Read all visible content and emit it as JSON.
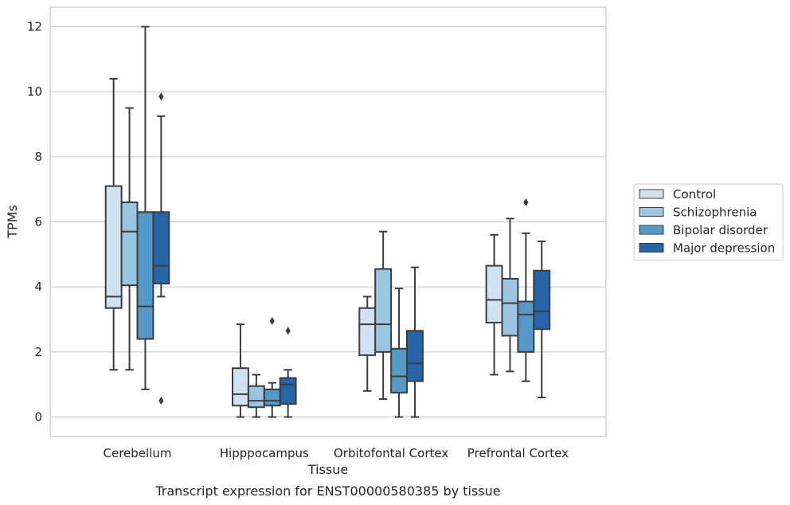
{
  "chart_data": {
    "type": "box",
    "xlabel": "Tissue",
    "ylabel": "TPMs",
    "caption": "Transcript expression for ENST00000580385 by tissue",
    "ylim": [
      -0.6,
      12.6
    ],
    "yticks": [
      0,
      2,
      4,
      6,
      8,
      10,
      12
    ],
    "grid": "horizontal",
    "legend_position": "right",
    "categories": [
      "Cerebellum",
      "Hipppocampus",
      "Orbitofontal Cortex",
      "Prefrontal Cortex"
    ],
    "series": [
      {
        "name": "Control",
        "color": "#d0e1f2",
        "boxes": [
          {
            "whislo": 1.45,
            "q1": 3.35,
            "median": 3.7,
            "q3": 7.1,
            "whishi": 10.4,
            "fliers": []
          },
          {
            "whislo": 0.0,
            "q1": 0.35,
            "median": 0.7,
            "q3": 1.5,
            "whishi": 2.85,
            "fliers": []
          },
          {
            "whislo": 0.8,
            "q1": 1.9,
            "median": 2.85,
            "q3": 3.35,
            "whishi": 3.7,
            "fliers": []
          },
          {
            "whislo": 1.3,
            "q1": 2.9,
            "median": 3.6,
            "q3": 4.65,
            "whishi": 5.6,
            "fliers": []
          }
        ]
      },
      {
        "name": "Schizophrenia",
        "color": "#9ac4df",
        "boxes": [
          {
            "whislo": 1.45,
            "q1": 4.05,
            "median": 5.7,
            "q3": 6.6,
            "whishi": 9.5,
            "fliers": []
          },
          {
            "whislo": 0.0,
            "q1": 0.3,
            "median": 0.5,
            "q3": 0.95,
            "whishi": 1.3,
            "fliers": []
          },
          {
            "whislo": 0.55,
            "q1": 2.0,
            "median": 2.85,
            "q3": 4.55,
            "whishi": 5.7,
            "fliers": []
          },
          {
            "whislo": 1.4,
            "q1": 2.5,
            "median": 3.5,
            "q3": 4.25,
            "whishi": 6.1,
            "fliers": []
          }
        ]
      },
      {
        "name": "Bipolar disorder",
        "color": "#5599c8",
        "boxes": [
          {
            "whislo": 0.85,
            "q1": 2.4,
            "median": 3.4,
            "q3": 6.3,
            "whishi": 12.0,
            "fliers": []
          },
          {
            "whislo": 0.0,
            "q1": 0.35,
            "median": 0.5,
            "q3": 0.85,
            "whishi": 1.05,
            "fliers": [
              2.95
            ]
          },
          {
            "whislo": 0.0,
            "q1": 0.75,
            "median": 1.25,
            "q3": 2.1,
            "whishi": 3.95,
            "fliers": []
          },
          {
            "whislo": 1.1,
            "q1": 2.0,
            "median": 3.15,
            "q3": 3.55,
            "whishi": 5.65,
            "fliers": [
              6.6
            ]
          }
        ]
      },
      {
        "name": "Major depression",
        "color": "#2565a8",
        "boxes": [
          {
            "whislo": 3.7,
            "q1": 4.1,
            "median": 4.65,
            "q3": 6.3,
            "whishi": 9.25,
            "fliers": [
              9.85,
              0.5
            ]
          },
          {
            "whislo": 0.0,
            "q1": 0.4,
            "median": 1.0,
            "q3": 1.2,
            "whishi": 1.45,
            "fliers": [
              2.65
            ]
          },
          {
            "whislo": 0.0,
            "q1": 1.1,
            "median": 1.65,
            "q3": 2.65,
            "whishi": 4.6,
            "fliers": []
          },
          {
            "whislo": 0.6,
            "q1": 2.7,
            "median": 3.25,
            "q3": 4.5,
            "whishi": 5.4,
            "fliers": []
          }
        ]
      }
    ]
  }
}
